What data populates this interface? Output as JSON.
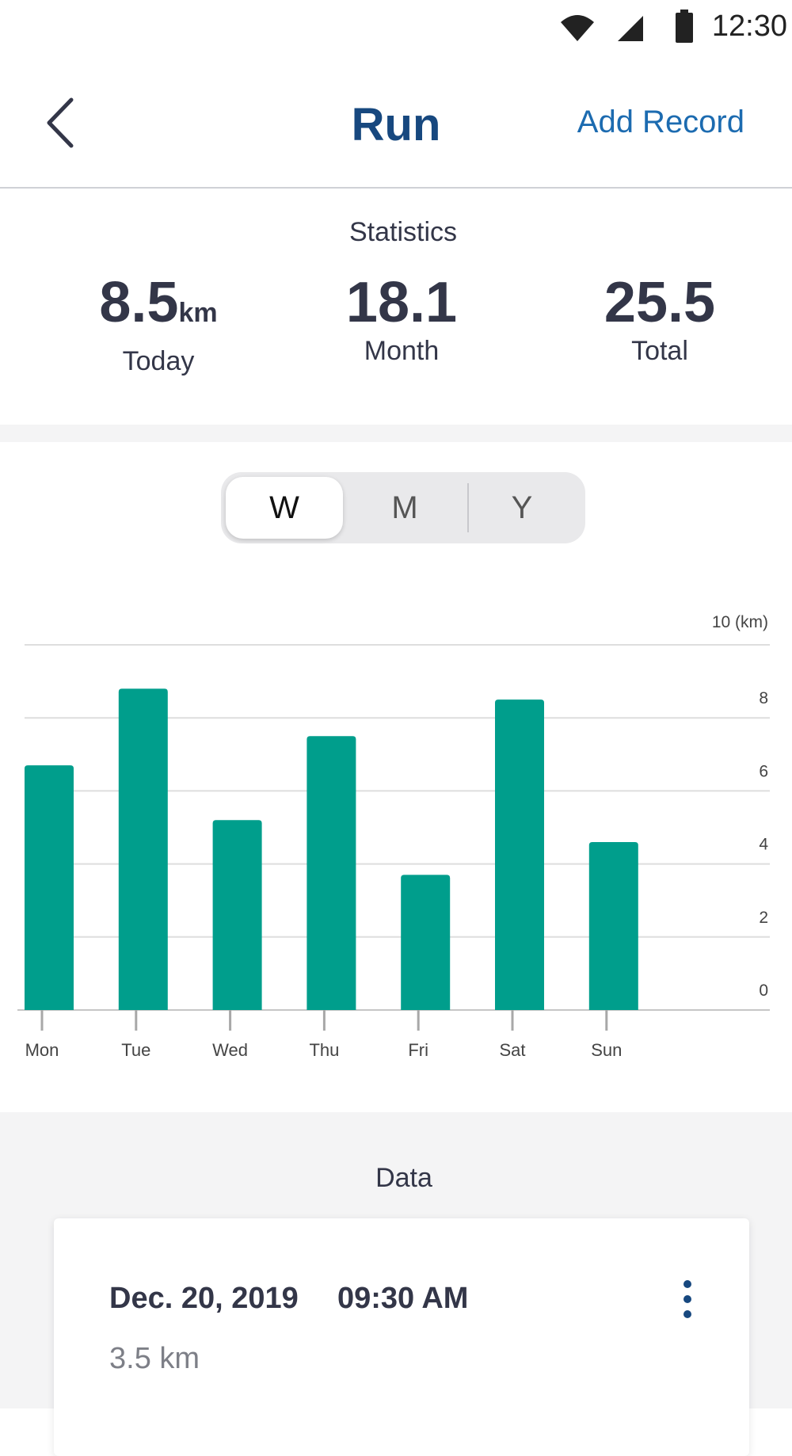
{
  "status_bar": {
    "time": "12:30",
    "icons": [
      "wifi-icon",
      "cellular-signal-icon",
      "battery-icon"
    ]
  },
  "header": {
    "back_icon": "chevron-left-icon",
    "title": "Run",
    "action_label": "Add Record"
  },
  "statistics": {
    "title": "Statistics",
    "items": [
      {
        "value": "8.5",
        "unit": "km",
        "label": "Today"
      },
      {
        "value": "18.1",
        "unit": "",
        "label": "Month"
      },
      {
        "value": "25.5",
        "unit": "",
        "label": "Total"
      }
    ]
  },
  "period_selector": {
    "options": [
      "W",
      "M",
      "Y"
    ],
    "selected": "W"
  },
  "chart_data": {
    "type": "bar",
    "categories": [
      "Mon",
      "Tue",
      "Wed",
      "Thu",
      "Fri",
      "Sat",
      "Sun"
    ],
    "values": [
      6.7,
      8.8,
      5.2,
      7.5,
      3.7,
      8.5,
      4.6
    ],
    "ylim": [
      0,
      10
    ],
    "yticks": [
      "0",
      "2",
      "4",
      "6",
      "8",
      "10 (km)"
    ],
    "grid": true,
    "bar_color": "#009e8c"
  },
  "data_section": {
    "title": "Data",
    "records": [
      {
        "date": "Dec. 20, 2019",
        "time": "09:30 AM",
        "distance": "3.5 km",
        "menu_icon": "more-vertical-icon"
      }
    ]
  },
  "colors": {
    "title_blue": "#17487f",
    "link_blue": "#1c6bb0",
    "text_dark": "#333648",
    "bar_teal": "#009e8c"
  }
}
